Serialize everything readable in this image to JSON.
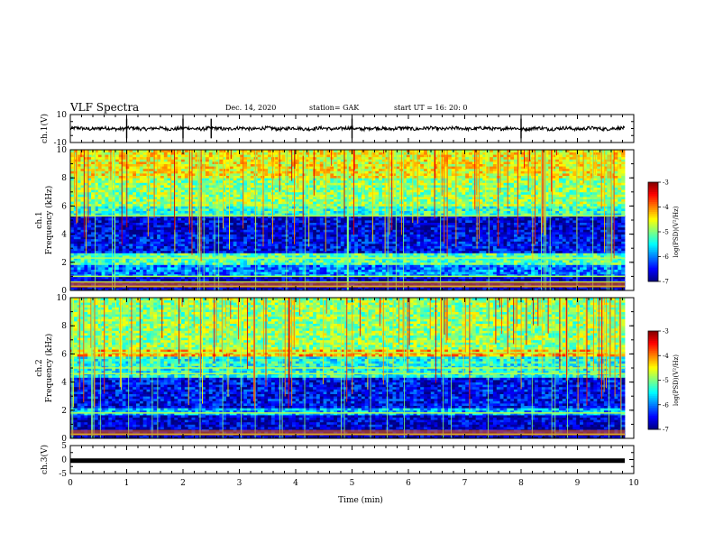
{
  "header": {
    "title": "VLF Spectra",
    "date": "Dec. 14, 2020",
    "station": "station= GAK",
    "start": "start  UT =   16: 20: 0"
  },
  "chart_data": [
    {
      "type": "line",
      "panel": "ch1-waveform",
      "ylabel": "ch.1(V)",
      "ylim": [
        -10,
        10
      ],
      "yticks": [
        "10",
        "-10"
      ],
      "xlim": [
        0,
        10
      ],
      "baseline": 0,
      "description_values": {
        "typical_amplitude_v": 1.5
      }
    },
    {
      "type": "heatmap",
      "panel": "ch1-spectrogram",
      "ylabel_line1": "ch.1",
      "ylabel_line2": "Frequency  (kHz)",
      "ylim": [
        0,
        10
      ],
      "yticks": [
        "0",
        "2",
        "4",
        "6",
        "8",
        "10"
      ],
      "xlim": [
        0,
        9.8
      ],
      "colorbar": {
        "label": "log(PSD)(V²/Hz)",
        "range": [
          -7,
          -3
        ],
        "ticks": [
          "-3",
          "-4",
          "-5",
          "-6",
          "-7"
        ]
      },
      "bands": [
        {
          "from": 0.0,
          "to": 1.0,
          "level": 0.05
        },
        {
          "from": 1.0,
          "to": 1.9,
          "level": 0.25
        },
        {
          "from": 1.9,
          "to": 2.6,
          "level": 0.45
        },
        {
          "from": 2.6,
          "to": 4.0,
          "level": 0.12
        },
        {
          "from": 4.0,
          "to": 5.3,
          "level": 0.08
        },
        {
          "from": 5.3,
          "to": 6.0,
          "level": 0.42
        },
        {
          "from": 6.0,
          "to": 8.0,
          "level": 0.52
        },
        {
          "from": 8.0,
          "to": 10.0,
          "level": 0.62
        }
      ],
      "lines_khz": [
        0.3,
        0.6,
        1.0,
        2.3,
        5.3
      ]
    },
    {
      "type": "heatmap",
      "panel": "ch2-spectrogram",
      "ylabel_line1": "ch.2",
      "ylabel_line2": "Frequency  (kHz)",
      "ylim": [
        0,
        10
      ],
      "yticks": [
        "0",
        "2",
        "4",
        "6",
        "8",
        "10"
      ],
      "xlim": [
        0,
        9.8
      ],
      "colorbar": {
        "label": "log(PSD)(V²/Hz)",
        "range": [
          -7,
          -3
        ],
        "ticks": [
          "-3",
          "-4",
          "-5",
          "-6",
          "-7"
        ]
      },
      "bands": [
        {
          "from": 0.0,
          "to": 0.8,
          "level": 0.05
        },
        {
          "from": 0.8,
          "to": 1.6,
          "level": 0.08
        },
        {
          "from": 1.6,
          "to": 2.2,
          "level": 0.3
        },
        {
          "from": 2.2,
          "to": 4.4,
          "level": 0.12
        },
        {
          "from": 4.4,
          "to": 5.9,
          "level": 0.4
        },
        {
          "from": 5.9,
          "to": 6.3,
          "level": 0.7
        },
        {
          "from": 6.3,
          "to": 10.0,
          "level": 0.52
        }
      ],
      "lines_khz": [
        0.3,
        1.8,
        4.6,
        5.0,
        6.1
      ]
    },
    {
      "type": "line",
      "panel": "ch3-waveform",
      "ylabel": "ch.3(V)",
      "ylim": [
        -5,
        5
      ],
      "yticks": [
        "5",
        "0",
        "-5"
      ],
      "xlim": [
        0,
        10
      ],
      "baseline": -0.4
    }
  ],
  "xaxis": {
    "label": "Time  (min)",
    "ticks": [
      "0",
      "1",
      "2",
      "3",
      "4",
      "5",
      "6",
      "7",
      "8",
      "9",
      "10"
    ]
  }
}
